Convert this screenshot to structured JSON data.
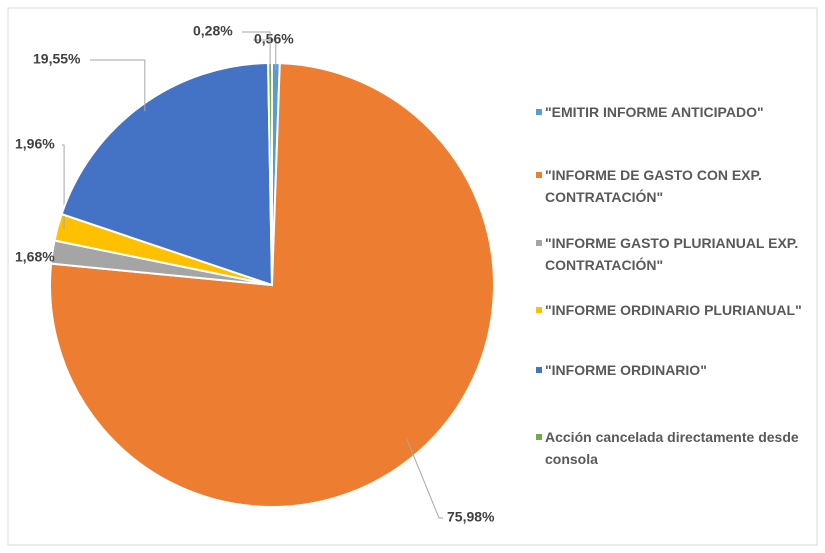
{
  "chart_data": {
    "type": "pie",
    "categories": [
      "\"EMITIR INFORME ANTICIPADO\"",
      "\"INFORME DE GASTO CON EXP. CONTRATACIÓN\"",
      "\"INFORME GASTO PLURIANUAL EXP. CONTRATACIÓN\"",
      "\"INFORME ORDINARIO PLURIANUAL\"",
      "\"INFORME ORDINARIO\"",
      "Acción cancelada directamente desde consola"
    ],
    "values": [
      0.56,
      75.98,
      1.68,
      1.96,
      19.55,
      0.28
    ],
    "value_labels": [
      "0,56%",
      "75,98%",
      "1,68%",
      "1,96%",
      "19,55%",
      "0,28%"
    ],
    "colors": [
      "#5b9bd5",
      "#ed7d31",
      "#a5a5a5",
      "#ffc000",
      "#4472c4",
      "#70ad47"
    ],
    "legend": "right"
  }
}
